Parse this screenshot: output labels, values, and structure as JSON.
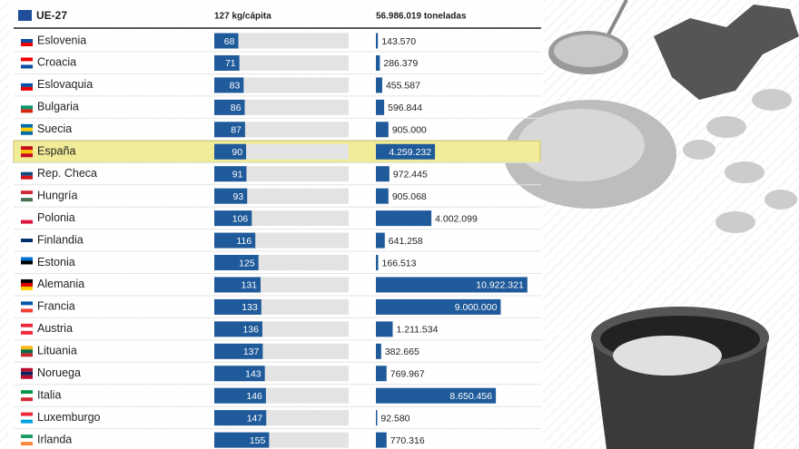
{
  "chart_data": {
    "type": "bar",
    "label": "UE-27",
    "categories": [
      "Eslovenia",
      "Croacia",
      "Eslovaquia",
      "Bulgaria",
      "Suecia",
      "España",
      "Rep. Checa",
      "Hungría",
      "Polonia",
      "Finlandia",
      "Estonia",
      "Alemania",
      "Francia",
      "Austria",
      "Lituania",
      "Noruega",
      "Italia",
      "Luxemburgo",
      "Irlanda"
    ],
    "series": [
      {
        "name": "127 kg/cápita",
        "color": "#1f5a9a",
        "xlim": [
          0,
          380
        ],
        "values": [
          68,
          71,
          83,
          86,
          87,
          90,
          91,
          93,
          106,
          116,
          125,
          131,
          133,
          136,
          137,
          143,
          146,
          147,
          155
        ]
      },
      {
        "name": "56.986.019 toneladas",
        "color": "#1f5a9a",
        "xlim": [
          0,
          11000000
        ],
        "values": [
          143570,
          286379,
          455587,
          596844,
          905000,
          4259232,
          972445,
          905068,
          4002099,
          641258,
          166513,
          10922321,
          9000000,
          1211534,
          382665,
          769967,
          8650456,
          92580,
          770316
        ],
        "value_labels": [
          "143.570",
          "286.379",
          "455.587",
          "596.844",
          "905.000",
          "4.259.232",
          "972.445",
          "905.068",
          "4.002.099",
          "641.258",
          "166.513",
          "10.922.321",
          "9.000.000",
          "1.211.534",
          "382.665",
          "769.967",
          "8.650.456",
          "92.580",
          "770.316"
        ]
      }
    ],
    "highlight_row": 5,
    "highlight_color": "#f1ec98"
  }
}
